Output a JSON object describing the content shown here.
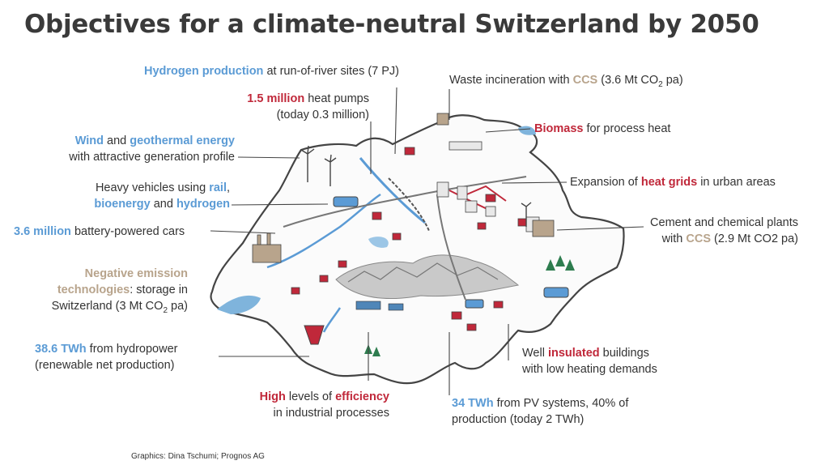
{
  "title": "Objectives for a climate-neutral Switzerland by 2050",
  "credit": "Graphics: Dina Tschumi; Prognos AG",
  "colors": {
    "blue": "#5b9bd5",
    "red": "#c0283a",
    "tan": "#b8a48c",
    "text": "#333333"
  },
  "labels": {
    "hydrogen": {
      "h": "Hydrogen production",
      "t": " at run-of-river sites (7 PJ)"
    },
    "heatpumps": {
      "h": "1.5 million",
      "t": " heat pumps",
      "l2": "(today 0.3 million)"
    },
    "wind": {
      "h1": "Wind",
      "m": " and ",
      "h2": "geothermal energy",
      "l2": "with attractive generation profile"
    },
    "heavy": {
      "l1": "Heavy vehicles using ",
      "h1": "rail",
      "c": ",",
      "h2": "bioenergy",
      "m": " and ",
      "h3": "hydrogen"
    },
    "cars": {
      "h": "3.6 million",
      "t": " battery-powered cars"
    },
    "negative": {
      "h1": "Negative emission",
      "h2": "technologies",
      "t": ":  storage in",
      "l3a": "Switzerland (3 Mt CO",
      "sub": "2",
      "l3b": " pa)"
    },
    "hydro": {
      "h": "38.6 TWh",
      "t": " from hydropower",
      "l2": "(renewable net production)"
    },
    "efficiency": {
      "h1": "High",
      "m": " levels of ",
      "h2": "efficiency",
      "l2": "in industrial processes"
    },
    "pv": {
      "h": "34 TWh",
      "t": " from PV systems, 40% of",
      "l2": "production (today 2 TWh)"
    },
    "insulated": {
      "a": "Well ",
      "h": "insulated",
      "b": " buildings",
      "l2": "with low heating demands"
    },
    "cement": {
      "l1": "Cement and chemical plants",
      "a": "with ",
      "h": "CCS",
      "b": " (2.9 Mt CO2 pa)"
    },
    "heatgrids": {
      "a": "Expansion of ",
      "h": "heat grids",
      "b": " in urban areas"
    },
    "biomass": {
      "h": "Biomass",
      "t": " for process heat"
    },
    "waste": {
      "a": "Waste incineration with ",
      "h": "CCS",
      "b": " (3.6 Mt CO",
      "sub": "2",
      "c": " pa)"
    }
  }
}
